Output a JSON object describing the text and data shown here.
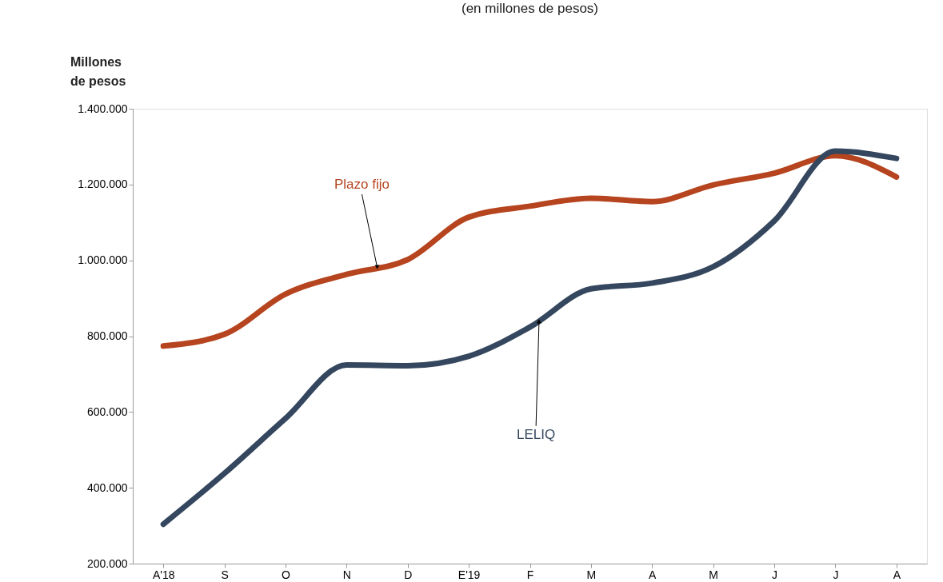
{
  "chart_data": {
    "type": "line",
    "subtitle": "(en millones de pesos)",
    "ylabel": "Millones de pesos",
    "categories": [
      "A'18",
      "S",
      "O",
      "N",
      "D",
      "E'19",
      "F",
      "M",
      "A",
      "M",
      "J",
      "J",
      "A"
    ],
    "ylim": [
      200000,
      1400000
    ],
    "yticks": [
      {
        "value": 200000,
        "label": "200.000"
      },
      {
        "value": 400000,
        "label": "400.000"
      },
      {
        "value": 600000,
        "label": "600.000"
      },
      {
        "value": 800000,
        "label": "800.000"
      },
      {
        "value": 1000000,
        "label": "1.000.000"
      },
      {
        "value": 1200000,
        "label": "1.200.000"
      },
      {
        "value": 1400000,
        "label": "1.400.000"
      }
    ],
    "grid": false,
    "legend": false,
    "series": [
      {
        "name": "Plazo fijo",
        "color": "#b5441f",
        "values": [
          774000,
          805000,
          911000,
          963000,
          1002000,
          1114000,
          1143000,
          1164000,
          1155000,
          1199000,
          1230000,
          1276000,
          1220000
        ]
      },
      {
        "name": "LELIQ",
        "color": "#34475e",
        "values": [
          304000,
          438000,
          583000,
          724000,
          722000,
          747000,
          824000,
          925000,
          940000,
          983000,
          1104000,
          1288000,
          1269000
        ]
      }
    ]
  }
}
